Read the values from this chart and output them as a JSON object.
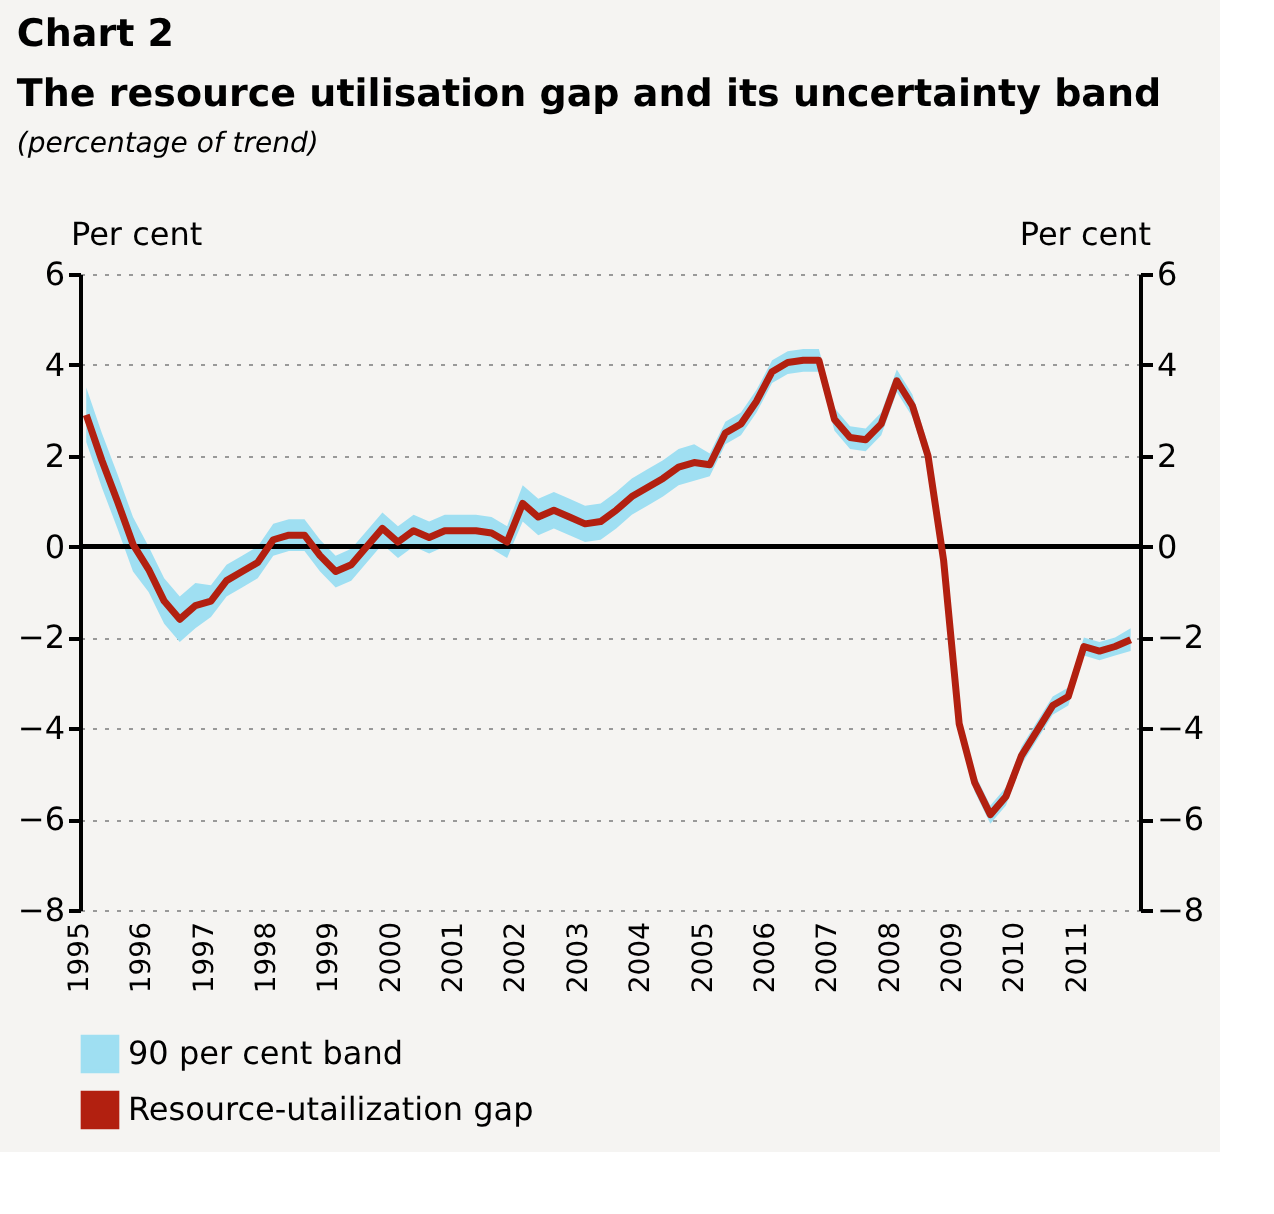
{
  "chart_data": {
    "type": "line",
    "title": "Chart 2",
    "subtitle": "The resource utilisation gap and its uncertainty band",
    "annotations": [
      "(percentage of trend)"
    ],
    "ylabel": "Per cent",
    "y2label": "Per cent",
    "x": [
      1995.1,
      1995.35,
      1995.6,
      1995.85,
      1996.1,
      1996.35,
      1996.6,
      1996.85,
      1997.1,
      1997.35,
      1997.6,
      1997.85,
      1998.1,
      1998.35,
      1998.6,
      1998.85,
      1999.1,
      1999.35,
      1999.6,
      1999.85,
      2000.1,
      2000.35,
      2000.6,
      2000.85,
      2001.1,
      2001.35,
      2001.6,
      2001.85,
      2002.1,
      2002.35,
      2002.6,
      2002.85,
      2003.1,
      2003.35,
      2003.6,
      2003.85,
      2004.1,
      2004.35,
      2004.6,
      2004.85,
      2005.1,
      2005.35,
      2005.6,
      2005.85,
      2006.1,
      2006.35,
      2006.6,
      2006.85,
      2007.1,
      2007.35,
      2007.6,
      2007.85,
      2008.1,
      2008.35,
      2008.6,
      2008.85,
      2009.1,
      2009.35,
      2009.6,
      2009.85,
      2010.1,
      2010.35,
      2010.6,
      2010.85,
      2011.1,
      2011.35,
      2011.6,
      2011.85
    ],
    "series": [
      {
        "name": "90 per cent band",
        "type": "area",
        "color": "#9fdff2",
        "values": [
          null,
          null,
          null,
          null,
          null,
          null,
          null,
          null,
          null,
          null,
          null,
          null,
          null,
          null,
          null,
          null,
          null,
          null,
          null,
          null,
          null,
          null,
          null,
          null,
          null,
          null,
          null,
          null,
          null,
          null,
          null,
          null,
          null,
          null,
          null,
          null,
          null,
          null,
          null,
          null,
          null,
          null,
          null,
          null,
          null,
          null,
          null,
          null,
          null,
          null,
          null,
          null,
          null,
          null,
          null,
          null,
          null,
          null,
          null,
          null,
          null,
          null,
          null,
          null,
          null,
          null,
          null,
          null
        ],
        "lower": [
          2.3,
          1.3,
          0.4,
          -0.55,
          -1.0,
          -1.7,
          -2.1,
          -1.8,
          -1.55,
          -1.1,
          -0.9,
          -0.7,
          -0.2,
          -0.1,
          -0.1,
          -0.55,
          -0.9,
          -0.75,
          -0.35,
          0.05,
          -0.25,
          0.0,
          -0.15,
          0.0,
          0.0,
          0.0,
          -0.05,
          -0.25,
          0.55,
          0.25,
          0.4,
          0.25,
          0.1,
          0.15,
          0.4,
          0.7,
          0.9,
          1.1,
          1.35,
          1.45,
          1.55,
          2.25,
          2.45,
          2.95,
          3.6,
          3.8,
          3.85,
          3.85,
          2.55,
          2.15,
          2.1,
          2.45,
          3.4,
          2.85,
          1.75,
          -0.55,
          -4.1,
          -5.4,
          -6.1,
          -5.7,
          -4.8,
          -4.25,
          -3.7,
          -3.5,
          -2.4,
          -2.5,
          -2.4,
          -2.3
        ],
        "upper": [
          3.5,
          2.5,
          1.6,
          0.65,
          0.0,
          -0.7,
          -1.1,
          -0.8,
          -0.85,
          -0.4,
          -0.2,
          0.0,
          0.5,
          0.6,
          0.6,
          0.15,
          -0.2,
          -0.05,
          0.35,
          0.75,
          0.45,
          0.7,
          0.55,
          0.7,
          0.7,
          0.7,
          0.65,
          0.45,
          1.35,
          1.05,
          1.2,
          1.05,
          0.9,
          0.95,
          1.2,
          1.5,
          1.7,
          1.9,
          2.15,
          2.25,
          2.05,
          2.75,
          2.95,
          3.45,
          4.1,
          4.3,
          4.35,
          4.35,
          3.05,
          2.65,
          2.6,
          2.95,
          3.9,
          3.35,
          2.25,
          -0.05,
          -3.7,
          -5.0,
          -5.7,
          -5.3,
          -4.4,
          -3.85,
          -3.3,
          -3.1,
          -2.0,
          -2.1,
          -2.0,
          -1.8
        ]
      },
      {
        "name": "Resource-utailization gap",
        "type": "line",
        "color": "#b22010",
        "values": [
          2.9,
          1.9,
          1.0,
          0.05,
          -0.5,
          -1.2,
          -1.6,
          -1.3,
          -1.2,
          -0.75,
          -0.55,
          -0.35,
          0.15,
          0.25,
          0.25,
          -0.2,
          -0.55,
          -0.4,
          0.0,
          0.4,
          0.1,
          0.35,
          0.2,
          0.35,
          0.35,
          0.35,
          0.3,
          0.1,
          0.95,
          0.65,
          0.8,
          0.65,
          0.5,
          0.55,
          0.8,
          1.1,
          1.3,
          1.5,
          1.75,
          1.85,
          1.8,
          2.5,
          2.7,
          3.2,
          3.85,
          4.05,
          4.1,
          4.1,
          2.8,
          2.4,
          2.35,
          2.7,
          3.65,
          3.1,
          2.0,
          -0.3,
          -3.9,
          -5.2,
          -5.9,
          -5.5,
          -4.6,
          -4.05,
          -3.5,
          -3.3,
          -2.2,
          -2.3,
          -2.2,
          -2.05
        ]
      }
    ],
    "xlim": [
      1995,
      2012
    ],
    "xticks": [
      1995,
      1996,
      1997,
      1998,
      1999,
      2000,
      2001,
      2002,
      2003,
      2004,
      2005,
      2006,
      2007,
      2008,
      2009,
      2010,
      2011
    ],
    "ylim": [
      -8,
      6
    ],
    "yticks": [
      -8,
      -6,
      -4,
      -2,
      0,
      2,
      4,
      6
    ],
    "y2lim": [
      -8,
      6
    ],
    "y2ticks": [
      -8,
      -6,
      -4,
      -2,
      0,
      2,
      4,
      6
    ],
    "ref_lines": [
      {
        "axis": "y",
        "value": 0,
        "color": "#000000"
      }
    ],
    "grid": "y",
    "legend": "bottom",
    "line_style": "solid",
    "marker": "none"
  }
}
